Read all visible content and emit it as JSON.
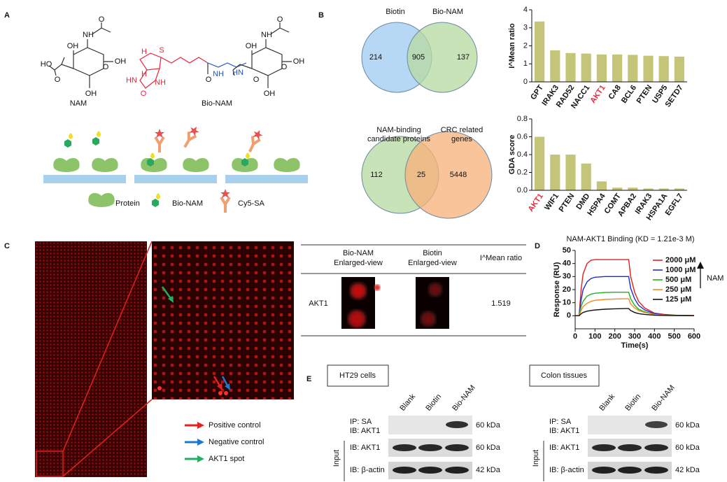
{
  "panels": [
    "A",
    "B",
    "C",
    "D",
    "E"
  ],
  "panel_a": {
    "structures": [
      {
        "label": "NAM",
        "atoms": [
          "O",
          "NH",
          "OH",
          "O",
          "OH",
          "HO",
          "O",
          "OH"
        ]
      },
      {
        "label": "Bio-NAM",
        "atoms": [
          "S",
          "H",
          "H",
          "HN",
          "NH",
          "O",
          "O",
          "NH",
          "HN",
          "O",
          "NH",
          "OH",
          "O",
          "OH",
          "OH",
          "O"
        ]
      }
    ],
    "biotin_color": "#e8283c",
    "linker_color": "#2050d0",
    "legend": [
      "Protein",
      "Bio-NAM",
      "Cy5-SA"
    ]
  },
  "venn": [
    {
      "sets": [
        [
          "Biotin"
        ],
        [
          "Bio-NAM"
        ]
      ],
      "counts": [
        214,
        905,
        137
      ],
      "colors": [
        "#9ecbf0",
        "#b7d9a0"
      ]
    },
    {
      "sets": [
        [
          "NAM-binding",
          "candidate proteins"
        ],
        [
          "CRC related",
          "genes"
        ]
      ],
      "counts": [
        112,
        25,
        5448
      ],
      "colors": [
        "#b7d9a0",
        "#f8b07a"
      ]
    }
  ],
  "panel_c": {
    "table": {
      "header": [
        [
          "Bio-NAM",
          "Enlarged-view"
        ],
        [
          "Biotin",
          "Enlarged-view"
        ],
        [
          "I^Mean ratio"
        ]
      ],
      "row": {
        "protein": "AKT1",
        "ratio": 1.519
      }
    },
    "legend": [
      {
        "label": "Positive control",
        "color": "#e82020"
      },
      {
        "label": "Negative control",
        "color": "#1f78c8"
      },
      {
        "label": "AKT1 spot",
        "color": "#20b060"
      }
    ]
  },
  "panel_d": {
    "arrow_label": "NAM"
  },
  "chart_data": [
    {
      "type": "bar",
      "ylabel": "I^Mean ratio",
      "categories": [
        "GPT",
        "IRAK3",
        "RAD52",
        "NACC1",
        "AKT1",
        "CA8",
        "BCL6",
        "PTEN",
        "USP5",
        "SETD7"
      ],
      "values": [
        3.35,
        1.75,
        1.6,
        1.57,
        1.52,
        1.52,
        1.5,
        1.45,
        1.43,
        1.4
      ],
      "color": "#c5c57a",
      "highlight": "AKT1",
      "highlight_color": "#e8283c",
      "ylim": [
        0,
        4
      ],
      "yticks": [
        0,
        1,
        2,
        3,
        4
      ]
    },
    {
      "type": "bar",
      "ylabel": "GDA score",
      "categories": [
        "AKT1",
        "WIF1",
        "PTEN",
        "DMD",
        "HSPA4",
        "COMT",
        "APBA2",
        "IRAK3",
        "HSPA1A",
        "EGFL7"
      ],
      "values": [
        0.6,
        0.4,
        0.4,
        0.3,
        0.1,
        0.03,
        0.03,
        0.02,
        0.02,
        0.02
      ],
      "color": "#c5c57a",
      "highlight": "AKT1",
      "highlight_color": "#e8283c",
      "ylim": [
        0,
        0.8
      ],
      "yticks": [
        {
          "value": 0,
          "label": "0.0"
        },
        0.2,
        0.4,
        0.6,
        0.8
      ]
    },
    {
      "type": "line",
      "title": "NAM-AKT1 Binding (KD = 1.21e-3 M)",
      "xlabel": "Time(s)",
      "ylabel": "Response (RU)",
      "x": [
        0,
        20,
        30,
        40,
        60,
        80,
        100,
        150,
        200,
        250,
        270,
        280,
        300,
        320,
        350,
        400,
        450,
        500,
        550,
        600
      ],
      "series": [
        {
          "name": "2000 μM",
          "color": "#e02020",
          "values": [
            0,
            0,
            20,
            32,
            40,
            42.5,
            43,
            43,
            43,
            43,
            43,
            30,
            18,
            11,
            6,
            2,
            1,
            0.5,
            0.3,
            0.2
          ]
        },
        {
          "name": "1000 μM",
          "color": "#1830d0",
          "values": [
            0,
            0,
            12,
            20,
            26,
            28.5,
            29.5,
            30,
            30,
            30,
            30,
            21,
            13,
            8,
            4.5,
            1.5,
            0.7,
            0.4,
            0.2,
            0.1
          ]
        },
        {
          "name": "500 μM",
          "color": "#20b020",
          "values": [
            0,
            0,
            7,
            11,
            15,
            16.5,
            17.2,
            17.8,
            18,
            18,
            18,
            13,
            8,
            5,
            3,
            1,
            0.5,
            0.3,
            0.2,
            0.1
          ]
        },
        {
          "name": "250 μM",
          "color": "#f08a20",
          "values": [
            0,
            0,
            4,
            7,
            9.5,
            11,
            11.8,
            12.5,
            12.8,
            13,
            13,
            9,
            6,
            4,
            2.5,
            1,
            0.4,
            0.2,
            0.1,
            0
          ]
        },
        {
          "name": "125 μM",
          "color": "#111111",
          "values": [
            0,
            0,
            1.5,
            2.5,
            3.5,
            4,
            4.4,
            5,
            5.3,
            5.5,
            5.5,
            4,
            2.5,
            1.6,
            1,
            0.4,
            0.2,
            0.1,
            0.1,
            0
          ]
        }
      ],
      "xlim": [
        0,
        600
      ],
      "xticks": [
        0,
        100,
        200,
        300,
        400,
        500,
        600
      ],
      "ylim": [
        -10,
        50
      ],
      "yticks": [
        0,
        10,
        20,
        30,
        40,
        50
      ]
    }
  ],
  "panel_e": {
    "blots": [
      "HT29 cells",
      "Colon tissues"
    ],
    "lanes": [
      "Blank",
      "Biotin",
      "Bio-NAM"
    ],
    "rows": [
      {
        "label": [
          "IP: SA",
          "IB: AKT1"
        ],
        "size": "60 kDa"
      },
      {
        "label": [
          "IB: AKT1"
        ],
        "size": "60 kDa"
      },
      {
        "label": [
          "IB: β-actin"
        ],
        "size": "42 kDa"
      }
    ],
    "input": "Input"
  }
}
